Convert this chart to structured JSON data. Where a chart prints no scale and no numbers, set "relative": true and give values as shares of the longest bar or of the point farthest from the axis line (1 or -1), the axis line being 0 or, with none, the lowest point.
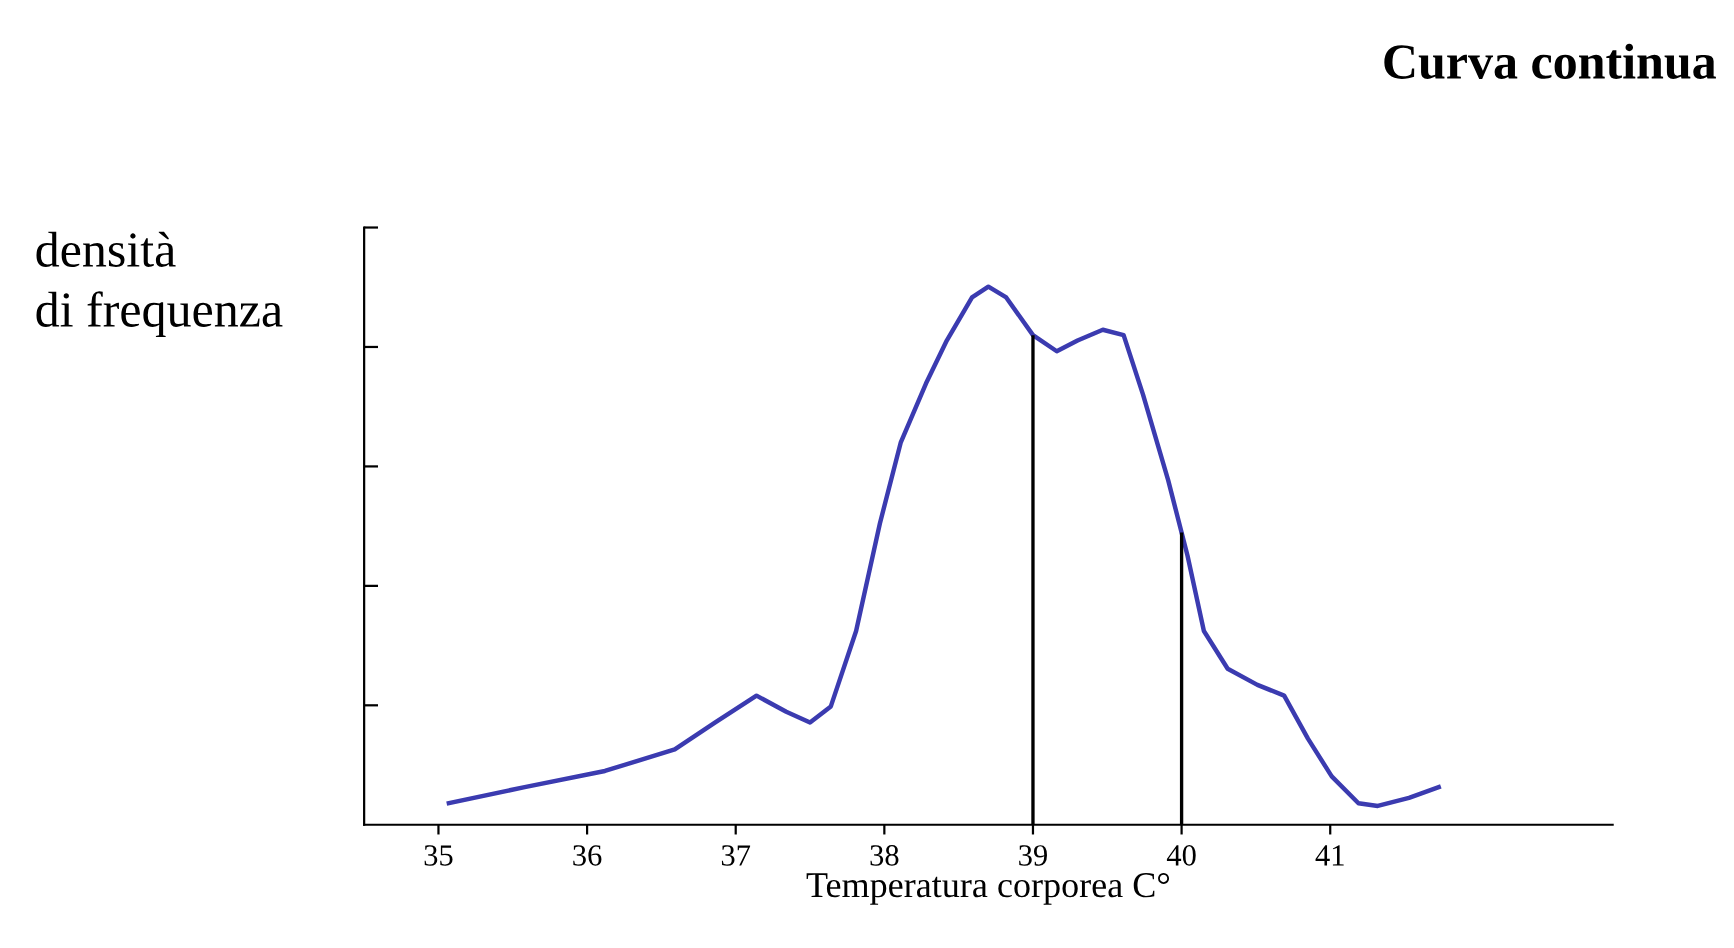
{
  "chart_data": {
    "type": "line",
    "title": "Curva continua",
    "ylabel": "densità\ndi frequenza",
    "xlabel": "Temperatura corporea C°",
    "relative": true,
    "grid": false,
    "legend": false,
    "marker": "none",
    "line_style": "solid",
    "xlim": [
      34.5,
      42.9
    ],
    "xticks": [
      35,
      36,
      37,
      38,
      39,
      40,
      41
    ],
    "ref_lines": [
      {
        "axis": "x",
        "value": 39,
        "color": "#000000"
      },
      {
        "axis": "x",
        "value": 40,
        "color": "#000000"
      }
    ],
    "series": [
      {
        "color": "#3b3bb0",
        "x": [
          35.07,
          35.58,
          36.12,
          36.59,
          36.86,
          37.14,
          37.34,
          37.5,
          37.64,
          37.81,
          37.97,
          38.11,
          38.28,
          38.42,
          38.59,
          38.7,
          38.82,
          39.0,
          39.16,
          39.3,
          39.47,
          39.61,
          39.74,
          39.91,
          40.04,
          40.15,
          40.31,
          40.51,
          40.69,
          40.85,
          41.01,
          41.19,
          41.32,
          41.53,
          41.73
        ],
        "values": [
          0.04,
          0.07,
          0.1,
          0.14,
          0.19,
          0.24,
          0.21,
          0.19,
          0.22,
          0.36,
          0.56,
          0.71,
          0.82,
          0.9,
          0.98,
          1.0,
          0.98,
          0.91,
          0.88,
          0.9,
          0.92,
          0.91,
          0.8,
          0.64,
          0.5,
          0.36,
          0.29,
          0.26,
          0.24,
          0.16,
          0.09,
          0.04,
          0.035,
          0.05,
          0.07
        ]
      }
    ]
  }
}
